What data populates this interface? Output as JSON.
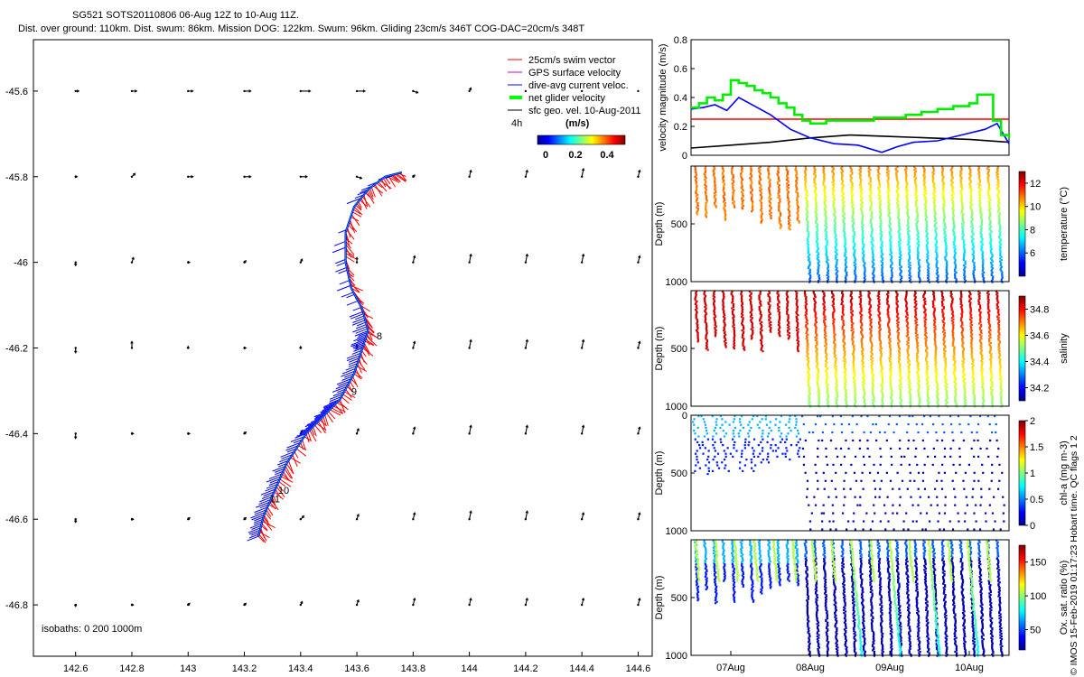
{
  "title": {
    "line1": "SG521 SOTS20110806 06-Aug 12Z to 10-Aug 11Z.",
    "line2": "Dist. over ground: 110km. Dist. swum: 86km. Mission DOG: 122km. Swum: 96km. Gliding 23cm/s 346T COG-DAC=20cm/s 348T"
  },
  "credit": "© IMOS 15-Feb-2019 01:17:23 Hobart time. QC flags 1  2",
  "colors": {
    "swim": "#ff0000",
    "gps": "#cc00cc",
    "dac": "#0000ff",
    "net": "#00ff00",
    "geo": "#000000",
    "track_blue": "#0000ff",
    "red_line": "#ff0000",
    "green_line": "#00ee00",
    "black_line": "#000000"
  },
  "chart_data": [
    {
      "type": "scatter",
      "name": "map",
      "xlim": [
        142.45,
        144.65
      ],
      "ylim": [
        -46.92,
        -45.48
      ],
      "xticks": [
        142.6,
        142.8,
        143,
        143.2,
        143.4,
        143.6,
        143.8,
        144,
        144.2,
        144.4,
        144.6
      ],
      "xticklabels": [
        "142.6",
        "142.8",
        "143",
        "143.2",
        "143.4",
        "143.6",
        "143.8",
        "144",
        "144.2",
        "144.4",
        "144.6"
      ],
      "yticks": [
        -45.6,
        -45.8,
        -46,
        -46.2,
        -46.4,
        -46.6,
        -46.8
      ],
      "yticklabels": [
        "-45.6",
        "-45.8",
        "-46",
        "-46.2",
        "-46.4",
        "-46.6",
        "-46.8"
      ],
      "legend": {
        "items": [
          "25cm/s swim vector",
          "GPS surface velocity",
          "dive-avg current veloc.",
          "net glider velocity",
          "sfc geo. vel. 10-Aug-2011"
        ],
        "scale_label": "4h",
        "units_label": "(m/s)",
        "colorbar_ticks": [
          "0",
          "0.2",
          "0.4"
        ]
      },
      "isobaths_label": "isobaths: 0   200  1000m",
      "track": [
        [
          143.25,
          -46.64
        ],
        [
          143.27,
          -46.59
        ],
        [
          143.31,
          -46.53
        ],
        [
          143.35,
          -46.47
        ],
        [
          143.42,
          -46.4
        ],
        [
          143.48,
          -46.36
        ],
        [
          143.54,
          -46.32
        ],
        [
          143.59,
          -46.26
        ],
        [
          143.62,
          -46.2
        ],
        [
          143.64,
          -46.16
        ],
        [
          143.62,
          -46.11
        ],
        [
          143.58,
          -46.06
        ],
        [
          143.56,
          -46.0
        ],
        [
          143.56,
          -45.93
        ],
        [
          143.59,
          -45.87
        ],
        [
          143.64,
          -45.83
        ],
        [
          143.7,
          -45.8
        ],
        [
          143.76,
          -45.79
        ]
      ],
      "day_labels": [
        {
          "text": "8",
          "lon": 143.67,
          "lat": -46.18
        },
        {
          "text": "9",
          "lon": 143.58,
          "lat": -46.31
        },
        {
          "text": "10",
          "lon": 143.32,
          "lat": -46.54
        },
        {
          "text": "11",
          "lon": 143.29,
          "lat": -46.56
        }
      ],
      "geo_vectors": {
        "lons": [
          142.6,
          142.8,
          143,
          143.2,
          143.4,
          143.6,
          143.8,
          144,
          144.2,
          144.4,
          144.6
        ],
        "lats": [
          -45.6,
          -45.8,
          -46,
          -46.2,
          -46.4,
          -46.6,
          -46.8
        ],
        "u": [
          [
            0.02,
            0.03,
            0.03,
            0.04,
            0.06,
            0.05,
            0.03,
            0.01,
            0,
            0,
            0
          ],
          [
            0.01,
            0.02,
            0.03,
            0.04,
            0.04,
            0.03,
            0.01,
            0.01,
            0.01,
            0.01,
            0.01
          ],
          [
            0,
            0.01,
            0.01,
            0.01,
            0.01,
            0,
            0.01,
            0.01,
            0.01,
            0.01,
            0.01
          ],
          [
            0,
            0,
            0,
            0.01,
            0,
            0,
            0.01,
            0.01,
            0.01,
            0.01,
            0.01
          ],
          [
            0,
            0.01,
            0.01,
            0.01,
            0.01,
            0.01,
            0.01,
            0.01,
            0.01,
            0.01,
            0.01
          ],
          [
            0,
            0.01,
            0.01,
            0.01,
            0.02,
            0.01,
            0.01,
            0.01,
            0.01,
            0.01,
            0.01
          ],
          [
            0,
            0.01,
            0.01,
            0.01,
            0.01,
            0.01,
            0.01,
            0.01,
            0.01,
            0.01,
            0.01
          ]
        ],
        "v": [
          [
            0,
            0,
            0,
            0,
            0,
            0,
            -0.01,
            0.02,
            0,
            0,
            0
          ],
          [
            0,
            0.02,
            0,
            0,
            0,
            -0.01,
            0.01,
            0.04,
            0.04,
            0.05,
            0.04
          ],
          [
            -0.02,
            0.03,
            0,
            0.01,
            0.02,
            0.03,
            0.04,
            0.05,
            0.05,
            0.05,
            0.04
          ],
          [
            -0.03,
            0.04,
            0.01,
            0,
            0.01,
            0.02,
            0.04,
            0.05,
            0.05,
            0.05,
            0.04
          ],
          [
            -0.03,
            0,
            0,
            0.01,
            0.02,
            0.03,
            0.04,
            0.05,
            0.05,
            0.05,
            0.04
          ],
          [
            -0.02,
            0,
            0.01,
            0.01,
            0.02,
            0.03,
            0.04,
            0.05,
            0.05,
            0.04,
            0.04
          ],
          [
            -0.01,
            0,
            0.01,
            0.01,
            0.02,
            0.03,
            0.04,
            0.04,
            0.04,
            0.04,
            0.04
          ]
        ]
      }
    },
    {
      "type": "line",
      "name": "velocity",
      "ylabel": "velocity magnitude (m/s)",
      "xlim": [
        0.5,
        4.5
      ],
      "ylim": [
        0,
        0.8
      ],
      "yticks": [
        0,
        0.2,
        0.4,
        0.6,
        0.8
      ],
      "yticklabels": [
        "0",
        "0.2",
        "0.4",
        "0.6",
        "0.8"
      ],
      "series": [
        {
          "name": "swim 25cm/s",
          "color": "red",
          "x": [
            0.5,
            4.5
          ],
          "y": [
            0.25,
            0.25
          ]
        },
        {
          "name": "geostrophic",
          "color": "black",
          "x": [
            0.5,
            1.0,
            1.5,
            2.0,
            2.5,
            3.0,
            3.5,
            4.0,
            4.5
          ],
          "y": [
            0.05,
            0.07,
            0.09,
            0.12,
            0.14,
            0.13,
            0.12,
            0.11,
            0.09
          ]
        },
        {
          "name": "dive-avg current",
          "color": "blue",
          "x": [
            0.5,
            0.65,
            0.8,
            0.95,
            1.1,
            1.3,
            1.5,
            1.75,
            2.0,
            2.3,
            2.6,
            2.9,
            3.1,
            3.3,
            3.6,
            3.9,
            4.2,
            4.35,
            4.5
          ],
          "y": [
            0.32,
            0.33,
            0.35,
            0.31,
            0.4,
            0.34,
            0.28,
            0.18,
            0.12,
            0.08,
            0.07,
            0.02,
            0.06,
            0.09,
            0.1,
            0.14,
            0.18,
            0.22,
            0.08
          ]
        },
        {
          "name": "net glider",
          "color": "green",
          "x": [
            0.5,
            0.6,
            0.7,
            0.8,
            0.9,
            1.0,
            1.1,
            1.2,
            1.3,
            1.4,
            1.5,
            1.6,
            1.7,
            1.8,
            1.9,
            2.0,
            2.2,
            2.4,
            2.6,
            2.8,
            3.0,
            3.2,
            3.4,
            3.6,
            3.8,
            4.0,
            4.1,
            4.2,
            4.3,
            4.4,
            4.5
          ],
          "y": [
            0.33,
            0.36,
            0.4,
            0.38,
            0.42,
            0.52,
            0.5,
            0.48,
            0.45,
            0.43,
            0.4,
            0.36,
            0.33,
            0.28,
            0.24,
            0.22,
            0.24,
            0.24,
            0.24,
            0.26,
            0.26,
            0.28,
            0.3,
            0.32,
            0.34,
            0.36,
            0.42,
            0.42,
            0.24,
            0.14,
            0.12
          ]
        }
      ]
    },
    {
      "type": "scatter",
      "name": "temperature",
      "ylabel": "Depth (m)",
      "yticklabels": [
        "500",
        "1000"
      ],
      "colorbar_label": "temperature (°C)",
      "colorbar_ticks": [
        "6",
        "8",
        "10",
        "12"
      ],
      "crange": [
        4,
        13
      ]
    },
    {
      "type": "scatter",
      "name": "salinity",
      "ylabel": "Depth (m)",
      "yticklabels": [
        "500",
        "1000"
      ],
      "colorbar_label": "salinity",
      "colorbar_ticks": [
        "34.2",
        "34.4",
        "34.6",
        "34.8"
      ],
      "crange": [
        34.1,
        34.9
      ]
    },
    {
      "type": "scatter",
      "name": "chl-a",
      "ylabel": "Depth (m)",
      "yticklabels": [
        "0",
        "500",
        "1000"
      ],
      "colorbar_label": "chl-a (mg m-3)",
      "colorbar_ticks": [
        "0",
        "0.5",
        "1",
        "1.5",
        "2"
      ],
      "crange": [
        0,
        2
      ]
    },
    {
      "type": "scatter",
      "name": "oxygen",
      "ylabel": "Depth (m)",
      "yticklabels": [
        "500",
        "1000"
      ],
      "colorbar_label": "Ox. sat. ratio (%)",
      "colorbar_ticks": [
        "50",
        "100",
        "150"
      ],
      "crange": [
        20,
        175
      ]
    },
    {
      "type": "table",
      "name": "time-axis",
      "xticklabels": [
        "07Aug",
        "08Aug",
        "09Aug",
        "10Aug"
      ],
      "xticks": [
        1,
        2,
        3,
        4
      ]
    }
  ]
}
